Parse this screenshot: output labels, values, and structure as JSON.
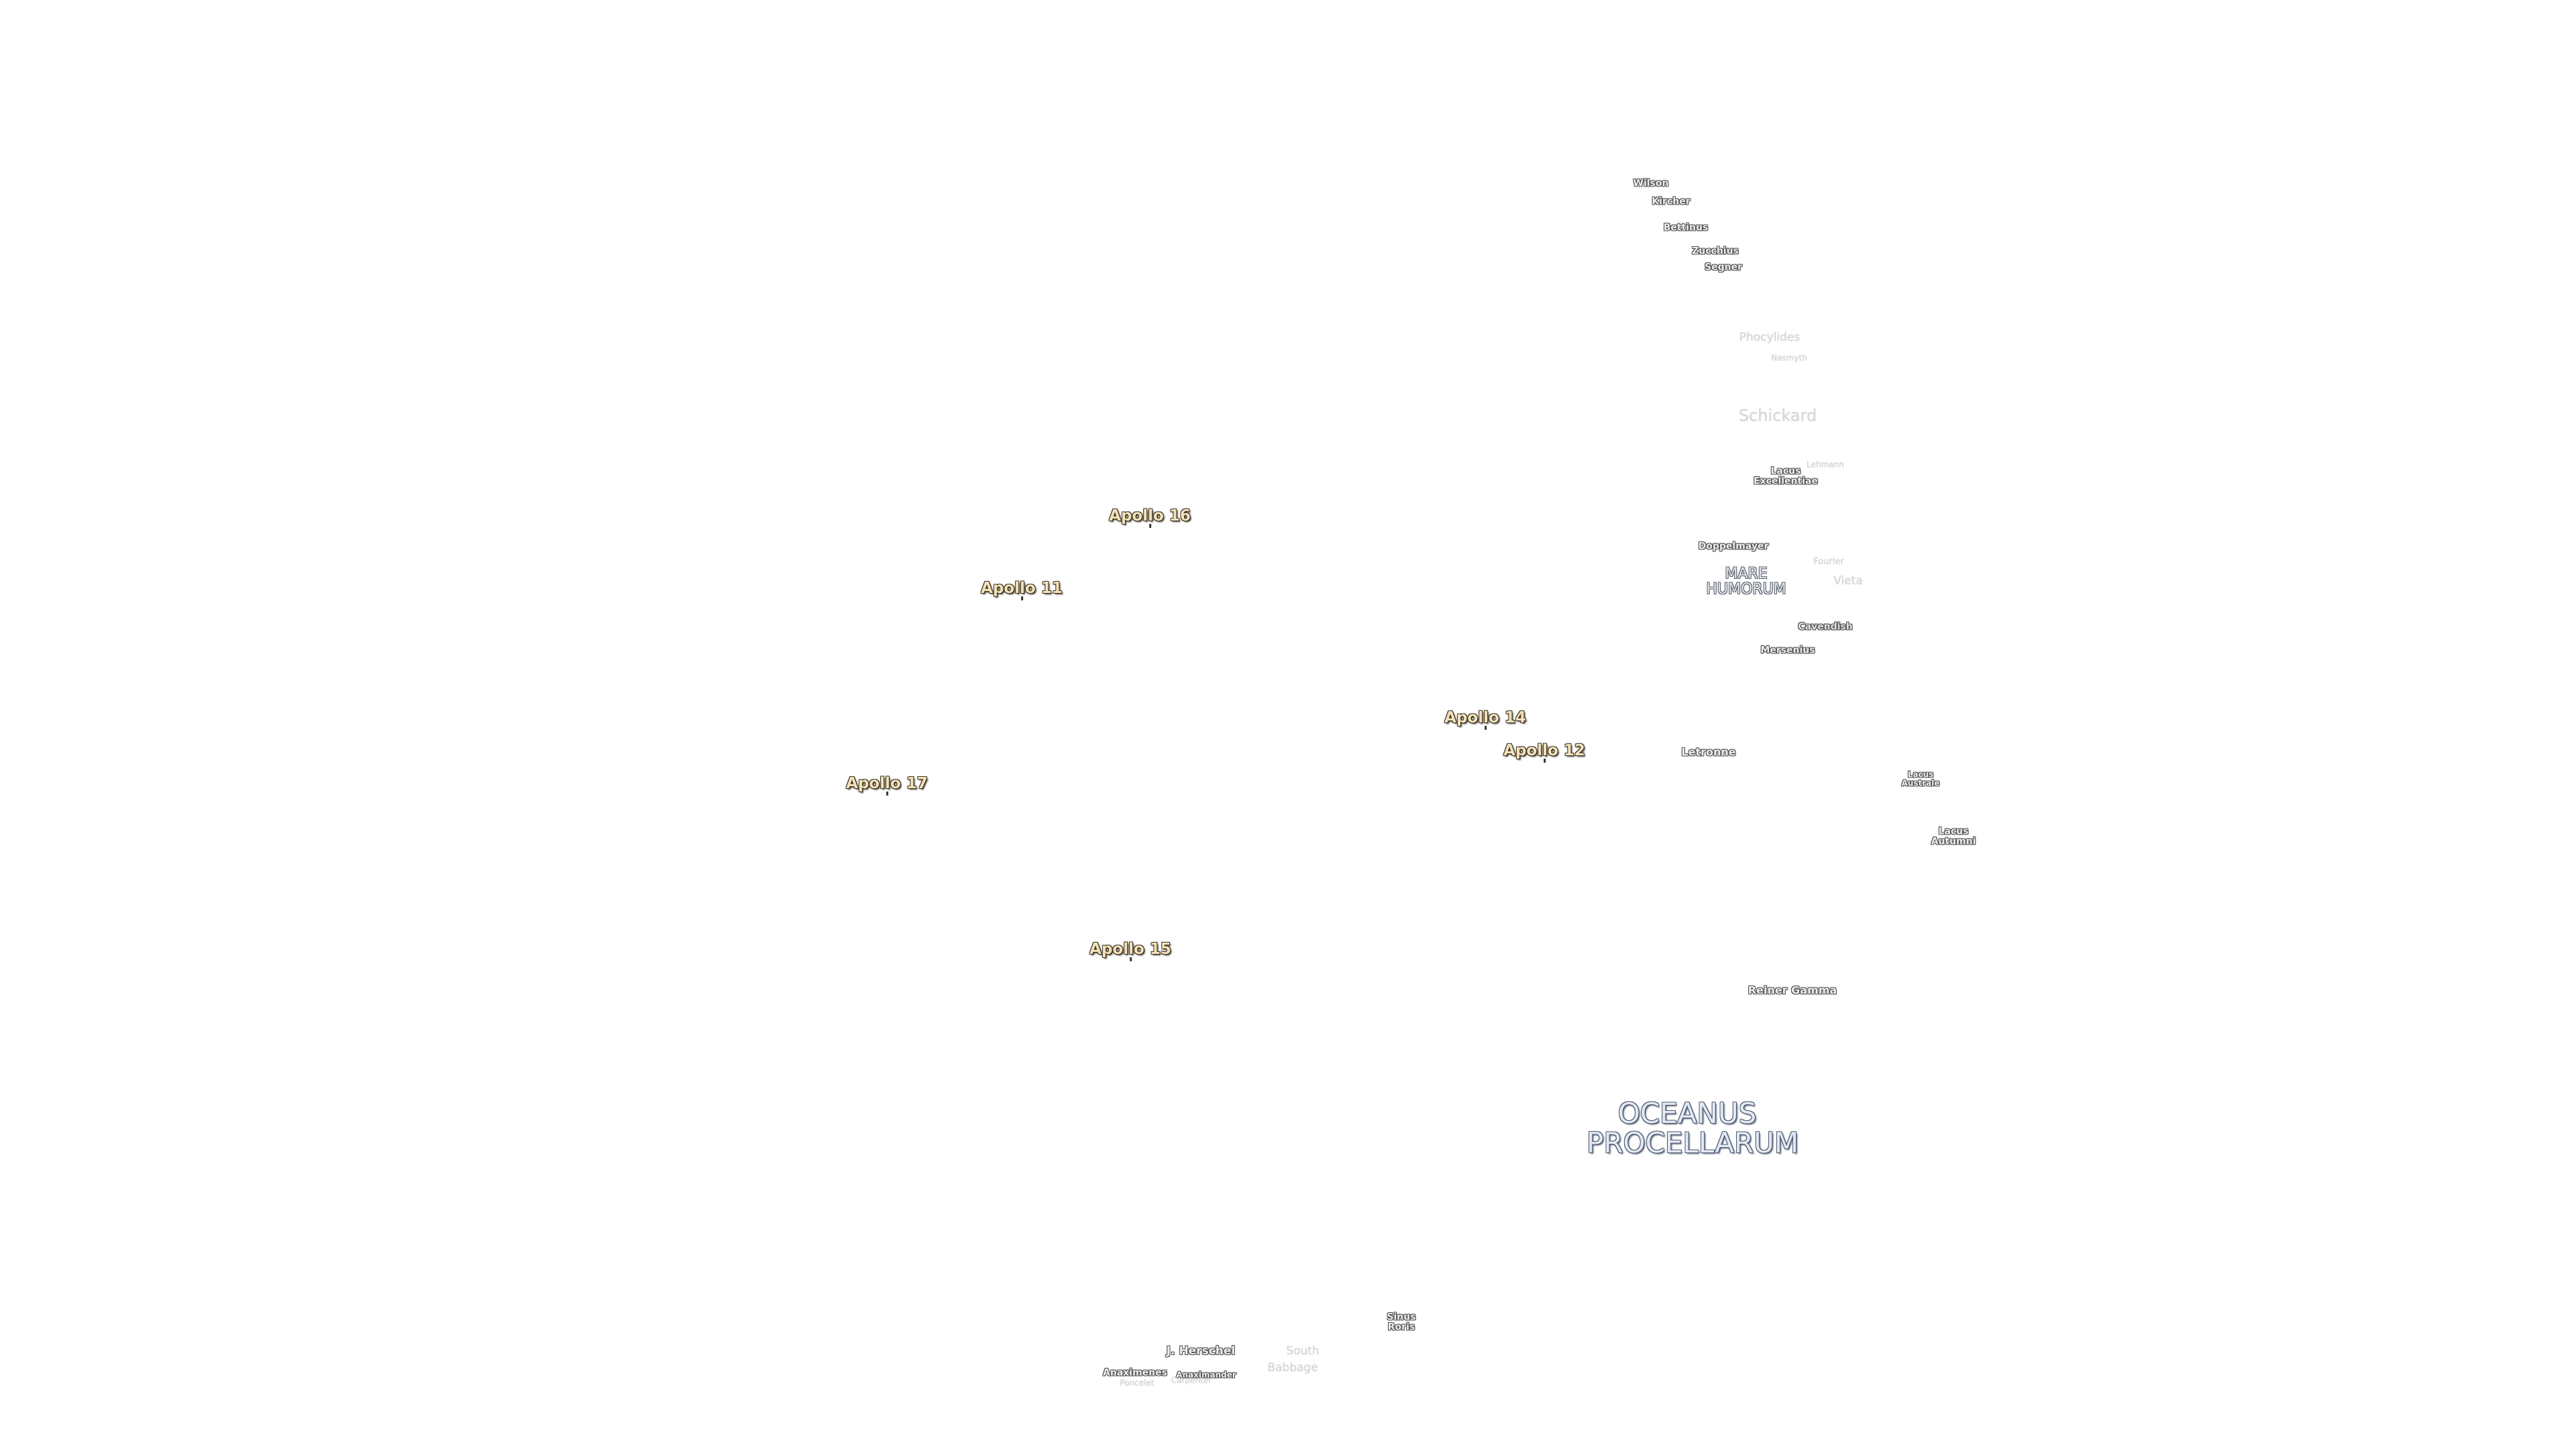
{
  "apollo_sites": [
    "Apollo 16",
    "Apollo 11",
    "Apollo 14",
    "Apollo 12",
    "Apollo 17",
    "Apollo 15"
  ],
  "features": [
    "Wilson",
    "Kircher",
    "Bettinus",
    "Zucchius",
    "Segner",
    "Phocylides",
    "Nasmyth",
    "Schickard",
    "Lehmann",
    "Lacus Excellentiae",
    "Doppelmayer",
    "Fourier",
    "MARE HUMORUM",
    "Vieta",
    "Cavendish",
    "Mersenius",
    "Letronne",
    "Lacus Australe",
    "Lacus Autumni",
    "Reiner Gamma",
    "OCEANUS PROCELLARUM",
    "Sinus Roris",
    "J. Herschel",
    "South",
    "Babbage",
    "Anaximenes",
    "Anaximander",
    "Poncelet",
    "Carpenter"
  ]
}
